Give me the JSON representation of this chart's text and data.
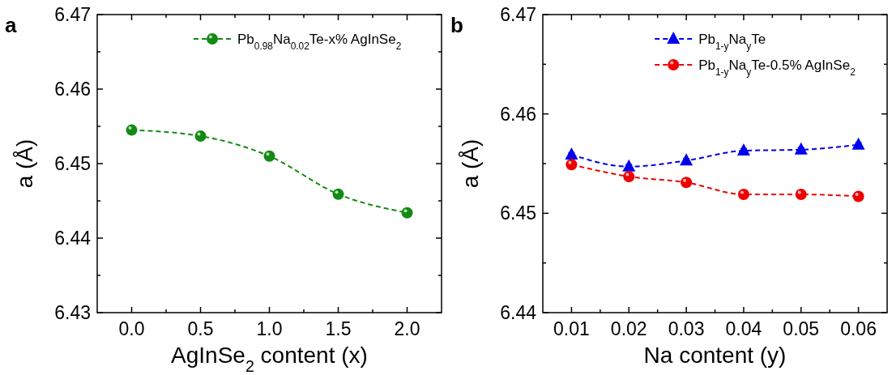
{
  "chart_data": [
    {
      "type": "line",
      "title": "a",
      "xlabel": "AgInSe$_{2}$ content (x)",
      "ylabel": "a (Å)",
      "x": [
        0,
        0.5,
        1,
        1.5,
        2
      ],
      "series": [
        {
          "name": "Pb$_{0.98}$Na$_{0.02}$Te-x% AgInSe$_{2}$",
          "color": "#138a13",
          "values": [
            6.4545,
            6.4537,
            6.451,
            6.4459,
            6.4434
          ],
          "marker": "circle"
        }
      ],
      "xlim": [
        -0.25,
        2.25
      ],
      "xticks": [
        {
          "value": 0,
          "label": "0.0"
        },
        {
          "value": 0.25,
          "label": null
        },
        0.5,
        {
          "value": 0.75,
          "label": null
        },
        {
          "value": 1,
          "label": "1.0"
        },
        {
          "value": 1.25,
          "label": null
        },
        1.5,
        {
          "value": 1.75,
          "label": null
        },
        {
          "value": 2,
          "label": "2.0"
        }
      ],
      "ylim": [
        6.43,
        6.47
      ],
      "yticks": [
        6.43,
        {
          "value": 6.435,
          "label": null
        },
        6.44,
        {
          "value": 6.445,
          "label": null
        },
        6.45,
        {
          "value": 6.455,
          "label": null
        },
        6.46,
        {
          "value": 6.465,
          "label": null
        },
        6.47
      ],
      "legend": "top right",
      "line_style": "dashed",
      "grid": false
    },
    {
      "type": "line",
      "title": "b",
      "xlabel": "Na content (y)",
      "ylabel": "a (Å)",
      "x": [
        0.01,
        0.02,
        0.03,
        0.04,
        0.05,
        0.06
      ],
      "series": [
        {
          "name": "Pb$_{1-y}$Na$_{y}$Te",
          "color": "#0000ee",
          "values": [
            6.4559,
            6.4547,
            6.4553,
            6.4563,
            6.4564,
            6.4569
          ],
          "marker": "triangle",
          "errors": [
            0.0002,
            0.0002,
            0.0002,
            0.0002,
            0.0002,
            0.0002
          ]
        },
        {
          "name": "Pb$_{1-y}$Na$_{y}$Te-0.5% AgInSe$_{2}$",
          "color": "#ee0000",
          "values": [
            6.4549,
            6.4537,
            6.4531,
            6.4519,
            6.4519,
            6.4517
          ],
          "marker": "circle"
        }
      ],
      "xlim": [
        0.005,
        0.065
      ],
      "xticks": [
        0.01,
        {
          "value": 0.015,
          "label": null
        },
        0.02,
        {
          "value": 0.025,
          "label": null
        },
        0.03,
        {
          "value": 0.035,
          "label": null
        },
        0.04,
        {
          "value": 0.045,
          "label": null
        },
        0.05,
        {
          "value": 0.055,
          "label": null
        },
        0.06
      ],
      "ylim": [
        6.44,
        6.47
      ],
      "yticks": [
        6.44,
        {
          "value": 6.445,
          "label": null
        },
        6.45,
        {
          "value": 6.455,
          "label": null
        },
        6.46,
        {
          "value": 6.465,
          "label": null
        },
        6.47
      ],
      "legend": "top right",
      "line_style": "dashed",
      "grid": false
    }
  ]
}
